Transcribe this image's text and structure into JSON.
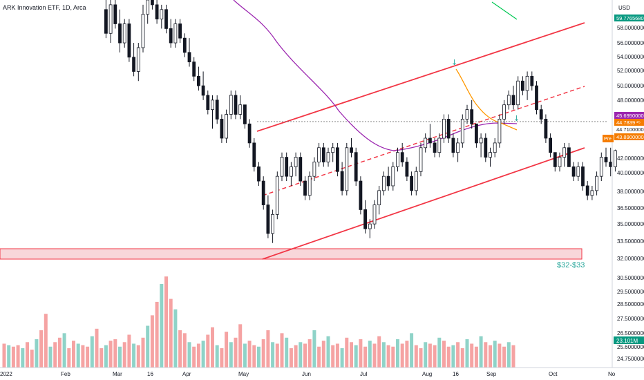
{
  "chart_data": {
    "type": "candlestick",
    "title": "ARK Innovation ETF, 1D, Arca",
    "currency": "USD",
    "y_axis_ticks": [
      "58.0000000",
      "56.0000000",
      "54.0000000",
      "52.0000000",
      "50.0000000",
      "48.0000000",
      "42.0000000",
      "40.0000000",
      "38.0000000",
      "36.5000000",
      "35.0000000",
      "33.5000000",
      "32.0000000"
    ],
    "x_axis_ticks": [
      "2022",
      "Feb",
      "Mar",
      "16",
      "Apr",
      "May",
      "Jun",
      "Jul",
      "Aug",
      "16",
      "Sep",
      "Oct",
      "No"
    ],
    "price_labels": [
      {
        "value": "59.7765680",
        "color": "#089981"
      },
      {
        "value": "45.6950000",
        "color": "#9c27b0"
      },
      {
        "value": "44.7839 ²⁵",
        "color": "#f57c00"
      },
      {
        "value": "44.7100000",
        "color": "#ffffff",
        "text_color": "#131722"
      },
      {
        "value": "43.8900000",
        "color": "#f57c00"
      }
    ],
    "price_label_tag": "Pre",
    "volume_ticks": [
      "30.5000000",
      "29.5000000",
      "28.5000000",
      "27.5000000",
      "26.5000000",
      "25.6000000",
      "24.7500000"
    ],
    "volume_label": {
      "value": "23.101M",
      "color": "#089981"
    },
    "annotation": "$32-$33",
    "support_zone": {
      "low": 32,
      "high": 33
    },
    "horizontal_line": 44.71,
    "ylim": [
      32,
      60
    ],
    "candles": [
      [
        59.5,
        60.5,
        56.5,
        57.0
      ],
      [
        57.0,
        61.0,
        56.0,
        60.0
      ],
      [
        60.0,
        61.0,
        57.5,
        58.0
      ],
      [
        58.0,
        59.5,
        55.0,
        56.0
      ],
      [
        56.0,
        58.5,
        55.5,
        58.0
      ],
      [
        58.0,
        58.5,
        54.0,
        54.5
      ],
      [
        54.5,
        56.0,
        52.5,
        53.0
      ],
      [
        53.0,
        56.0,
        52.0,
        55.5
      ],
      [
        55.5,
        60.0,
        55.0,
        59.0
      ],
      [
        59.0,
        61.0,
        58.0,
        60.5
      ],
      [
        60.5,
        61.5,
        59.5,
        60.0
      ],
      [
        60.0,
        61.5,
        58.0,
        58.5
      ],
      [
        58.5,
        60.0,
        57.5,
        59.5
      ],
      [
        59.5,
        60.0,
        57.0,
        57.5
      ],
      [
        57.5,
        58.5,
        55.5,
        56.0
      ],
      [
        56.0,
        58.5,
        55.5,
        58.0
      ],
      [
        58.0,
        58.5,
        56.0,
        56.5
      ],
      [
        56.5,
        57.0,
        54.5,
        55.0
      ],
      [
        55.0,
        56.5,
        53.5,
        54.0
      ],
      [
        54.0,
        54.5,
        52.0,
        52.5
      ],
      [
        52.5,
        53.5,
        51.0,
        51.5
      ],
      [
        51.5,
        53.0,
        50.0,
        50.5
      ],
      [
        50.5,
        51.0,
        48.5,
        49.0
      ],
      [
        49.0,
        50.5,
        47.0,
        50.0
      ],
      [
        50.0,
        50.5,
        47.5,
        48.0
      ],
      [
        48.0,
        48.5,
        45.5,
        46.0
      ],
      [
        46.0,
        49.0,
        45.5,
        48.5
      ],
      [
        48.5,
        51.0,
        48.0,
        50.5
      ],
      [
        50.5,
        51.0,
        48.0,
        48.5
      ],
      [
        48.5,
        50.5,
        48.0,
        49.5
      ],
      [
        49.5,
        49.5,
        47.0,
        47.5
      ],
      [
        47.5,
        48.0,
        45.0,
        45.5
      ],
      [
        45.5,
        46.0,
        42.5,
        43.0
      ],
      [
        43.0,
        43.5,
        41.0,
        41.5
      ],
      [
        41.5,
        42.0,
        38.5,
        39.0
      ],
      [
        39.0,
        40.0,
        35.5,
        36.0
      ],
      [
        36.0,
        38.5,
        35.0,
        38.0
      ],
      [
        38.0,
        42.5,
        37.5,
        42.0
      ],
      [
        42.0,
        44.5,
        41.5,
        44.0
      ],
      [
        44.0,
        44.5,
        41.5,
        42.0
      ],
      [
        42.0,
        43.5,
        41.0,
        43.0
      ],
      [
        43.0,
        44.5,
        42.0,
        44.0
      ],
      [
        44.0,
        44.5,
        41.0,
        41.5
      ],
      [
        41.5,
        42.0,
        39.5,
        40.0
      ],
      [
        40.0,
        42.5,
        39.5,
        42.0
      ],
      [
        42.0,
        44.0,
        41.5,
        43.5
      ],
      [
        43.5,
        45.5,
        43.0,
        45.0
      ],
      [
        45.0,
        45.5,
        43.0,
        43.5
      ],
      [
        43.5,
        45.0,
        43.0,
        44.5
      ],
      [
        44.5,
        45.5,
        43.5,
        45.0
      ],
      [
        45.0,
        45.5,
        42.0,
        42.5
      ],
      [
        42.5,
        43.5,
        40.0,
        40.5
      ],
      [
        40.5,
        45.5,
        40.0,
        45.0
      ],
      [
        45.0,
        46.0,
        44.0,
        44.5
      ],
      [
        44.5,
        45.0,
        41.0,
        41.5
      ],
      [
        41.5,
        42.0,
        38.0,
        38.5
      ],
      [
        38.5,
        39.5,
        36.0,
        36.5
      ],
      [
        36.5,
        37.5,
        35.5,
        37.0
      ],
      [
        37.0,
        39.5,
        36.5,
        39.0
      ],
      [
        39.0,
        41.0,
        38.0,
        40.5
      ],
      [
        40.5,
        42.5,
        40.0,
        42.0
      ],
      [
        42.0,
        43.0,
        40.5,
        41.0
      ],
      [
        41.0,
        43.5,
        40.5,
        43.0
      ],
      [
        43.0,
        45.0,
        42.5,
        44.5
      ],
      [
        44.5,
        45.5,
        43.0,
        43.5
      ],
      [
        43.5,
        44.0,
        41.5,
        42.0
      ],
      [
        42.0,
        42.5,
        40.0,
        40.5
      ],
      [
        40.5,
        43.0,
        40.0,
        42.5
      ],
      [
        42.5,
        45.5,
        42.0,
        45.0
      ],
      [
        45.0,
        46.5,
        44.5,
        46.0
      ],
      [
        46.0,
        47.5,
        45.0,
        45.5
      ],
      [
        45.5,
        46.0,
        44.0,
        44.5
      ],
      [
        44.5,
        46.5,
        44.0,
        46.0
      ],
      [
        46.0,
        48.5,
        45.5,
        48.0
      ],
      [
        48.0,
        48.5,
        45.5,
        46.0
      ],
      [
        46.0,
        46.5,
        44.0,
        44.5
      ],
      [
        44.5,
        46.0,
        43.5,
        45.5
      ],
      [
        45.5,
        48.5,
        45.0,
        48.0
      ],
      [
        48.0,
        49.5,
        47.5,
        49.0
      ],
      [
        49.0,
        50.0,
        47.0,
        47.5
      ],
      [
        47.5,
        47.5,
        45.0,
        45.5
      ],
      [
        45.5,
        46.5,
        44.0,
        46.0
      ],
      [
        46.0,
        46.5,
        43.5,
        44.0
      ],
      [
        44.0,
        45.0,
        43.0,
        44.5
      ],
      [
        44.5,
        46.0,
        44.0,
        45.5
      ],
      [
        45.5,
        48.5,
        45.0,
        48.0
      ],
      [
        48.0,
        50.0,
        47.5,
        49.5
      ],
      [
        49.5,
        51.0,
        49.0,
        50.5
      ],
      [
        50.5,
        51.5,
        49.0,
        49.5
      ],
      [
        49.5,
        52.5,
        49.0,
        52.0
      ],
      [
        52.0,
        52.5,
        50.5,
        51.0
      ],
      [
        51.0,
        53.0,
        50.0,
        52.5
      ],
      [
        52.5,
        53.0,
        51.0,
        51.5
      ],
      [
        51.5,
        52.0,
        48.5,
        49.0
      ],
      [
        49.0,
        49.5,
        47.5,
        48.0
      ],
      [
        48.0,
        48.5,
        45.5,
        46.0
      ],
      [
        46.0,
        46.5,
        44.0,
        44.5
      ],
      [
        44.5,
        44.5,
        42.5,
        43.0
      ],
      [
        43.0,
        44.5,
        42.5,
        44.0
      ],
      [
        44.0,
        45.5,
        43.0,
        45.0
      ],
      [
        45.0,
        45.5,
        43.0,
        43.0
      ],
      [
        43.0,
        43.5,
        41.5,
        42.0
      ],
      [
        42.0,
        43.5,
        41.5,
        43.0
      ],
      [
        43.0,
        43.5,
        40.5,
        41.0
      ],
      [
        41.0,
        41.5,
        39.5,
        40.0
      ],
      [
        40.0,
        41.0,
        39.5,
        40.5
      ],
      [
        40.5,
        42.5,
        40.0,
        42.0
      ],
      [
        42.0,
        44.5,
        41.5,
        44.0
      ],
      [
        44.0,
        45.0,
        43.0,
        43.5
      ],
      [
        43.5,
        45.0,
        42.0,
        43.0
      ],
      [
        43.0,
        44.8,
        42.5,
        44.7
      ]
    ],
    "volume": [
      26.1,
      26.0,
      25.9,
      26.0,
      25.8,
      26.2,
      25.7,
      26.4,
      27.0,
      28.1,
      25.9,
      26.2,
      26.5,
      26.8,
      25.8,
      26.3,
      26.1,
      26.0,
      25.9,
      26.6,
      27.1,
      25.8,
      26.0,
      26.3,
      26.4,
      25.9,
      26.2,
      26.7,
      26.1,
      26.0,
      26.5,
      27.3,
      28.0,
      28.9,
      30.1,
      30.6,
      29.1,
      28.4,
      27.0,
      26.8,
      26.2,
      25.9,
      26.1,
      26.3,
      26.7,
      27.2,
      26.0,
      25.8,
      26.9,
      26.2,
      26.5,
      27.4,
      26.1,
      26.3,
      26.0,
      25.9,
      26.4,
      27.0,
      26.2,
      26.1,
      26.8,
      26.5,
      25.8,
      26.0,
      26.2,
      26.1,
      26.4,
      27.0,
      25.9,
      26.3,
      26.6,
      26.0,
      26.1,
      25.8,
      26.5,
      26.2,
      26.0,
      26.4,
      25.9,
      26.3,
      26.1,
      26.6,
      26.2,
      26.0,
      25.9,
      26.4,
      26.1,
      26.3,
      26.8,
      26.0,
      25.8,
      26.2,
      26.1,
      26.0,
      26.5,
      26.3,
      25.9,
      26.0,
      26.2,
      25.8,
      26.4,
      26.1,
      25.9,
      26.6,
      26.2,
      26.0,
      26.3,
      26.1,
      25.9,
      26.2,
      26.0
    ],
    "volume_ylim": [
      24.5,
      30.7
    ],
    "grid": false
  }
}
